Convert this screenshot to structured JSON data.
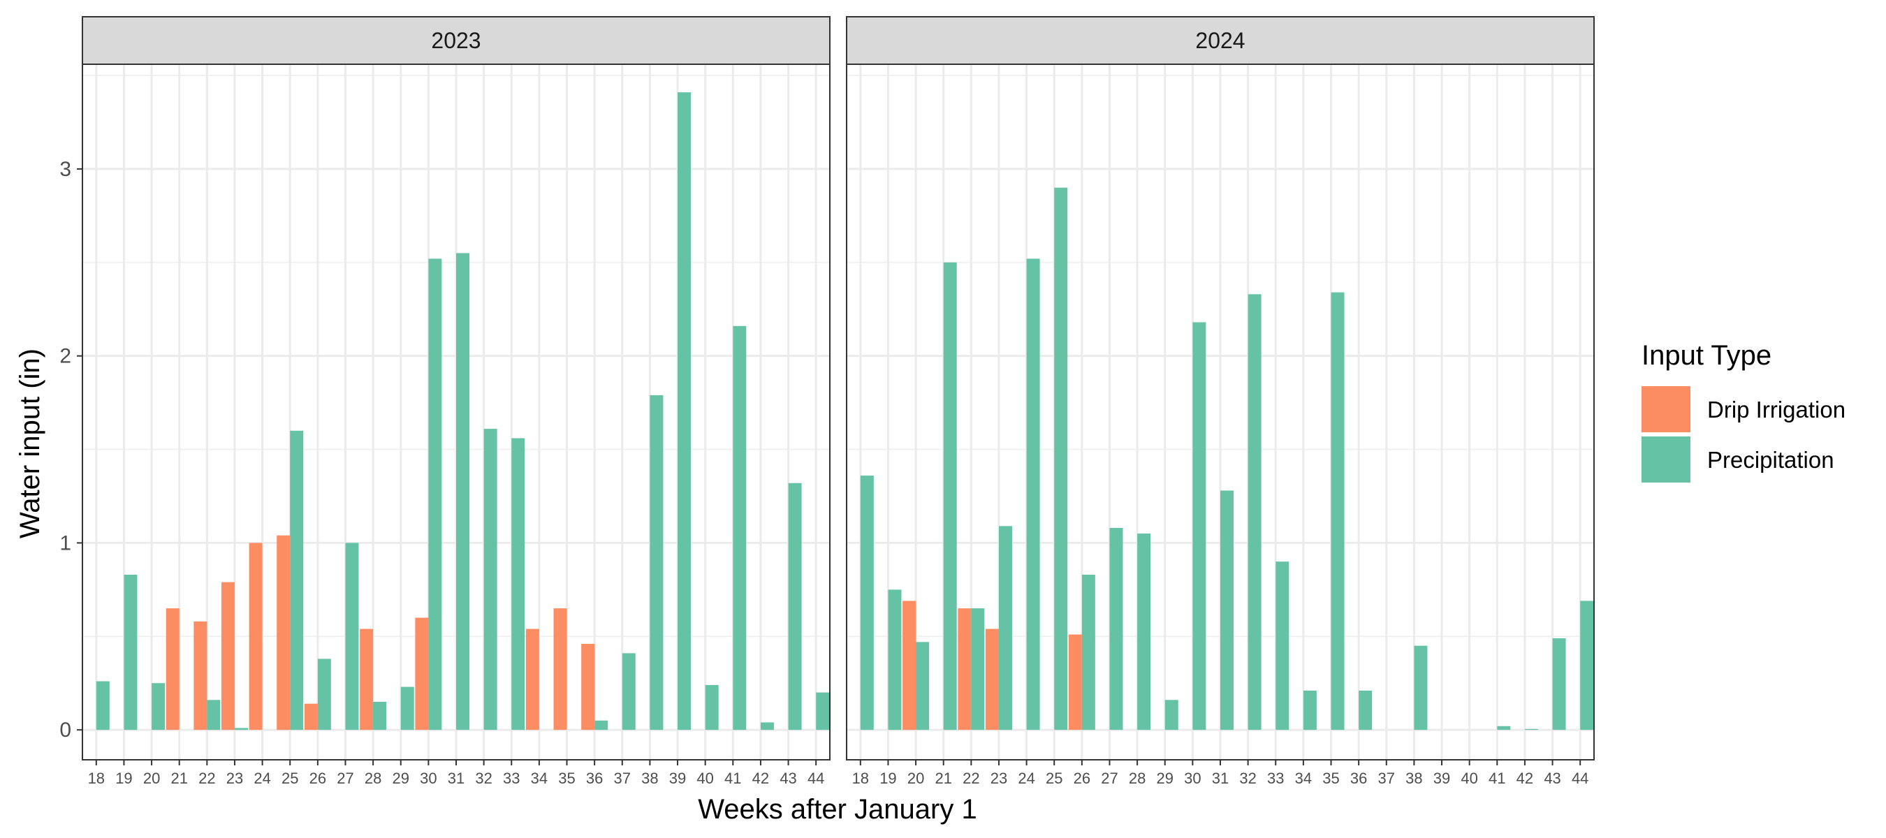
{
  "chart_data": {
    "type": "bar",
    "xlabel": "Weeks after January 1",
    "ylabel": "Water input (in)",
    "ylim": [
      -0.16,
      3.56
    ],
    "yticks": [
      0,
      1,
      2,
      3
    ],
    "grid": true,
    "legend": {
      "title": "Input Type",
      "placement": "right",
      "entries": [
        {
          "name": "Drip Irrigation",
          "color": "#fc8d62"
        },
        {
          "name": "Precipitation",
          "color": "#66c2a5"
        }
      ]
    },
    "weeks": [
      18,
      19,
      20,
      21,
      22,
      23,
      24,
      25,
      26,
      27,
      28,
      29,
      30,
      31,
      32,
      33,
      34,
      35,
      36,
      37,
      38,
      39,
      40,
      41,
      42,
      43,
      44
    ],
    "panels": [
      {
        "title": "2023",
        "series": [
          {
            "name": "Drip Irrigation",
            "color": "#fc8d62",
            "values": [
              0,
              0,
              0,
              0.65,
              0.58,
              0.79,
              1.0,
              1.04,
              0.14,
              0,
              0.54,
              0,
              0.6,
              0,
              0,
              0,
              0.54,
              0.65,
              0.46,
              0,
              0,
              0,
              0,
              0,
              0,
              0,
              0
            ]
          },
          {
            "name": "Precipitation",
            "color": "#66c2a5",
            "values": [
              0.26,
              0.83,
              0.25,
              0,
              0.16,
              0.01,
              0,
              1.6,
              0.38,
              1.0,
              0.15,
              0.23,
              2.52,
              2.55,
              1.61,
              1.56,
              0,
              0,
              0.05,
              0.41,
              1.79,
              3.41,
              0.24,
              2.16,
              0.04,
              1.32,
              0.2
            ]
          }
        ]
      },
      {
        "title": "2024",
        "series": [
          {
            "name": "Drip Irrigation",
            "color": "#fc8d62",
            "values": [
              0,
              0,
              0.69,
              0,
              0.65,
              0.54,
              0,
              0,
              0.51,
              0,
              0,
              0,
              0,
              0,
              0,
              0,
              0,
              0,
              0,
              0,
              0,
              0,
              0,
              0,
              0,
              0,
              0
            ]
          },
          {
            "name": "Precipitation",
            "color": "#66c2a5",
            "values": [
              1.36,
              0.75,
              0.47,
              2.5,
              0.65,
              1.09,
              2.52,
              2.9,
              0.83,
              1.08,
              1.05,
              0.16,
              2.18,
              1.28,
              2.33,
              0.9,
              0.21,
              2.34,
              0.21,
              0,
              0.45,
              0,
              0,
              0.02,
              0.005,
              0.49,
              0.69
            ]
          }
        ]
      }
    ]
  }
}
